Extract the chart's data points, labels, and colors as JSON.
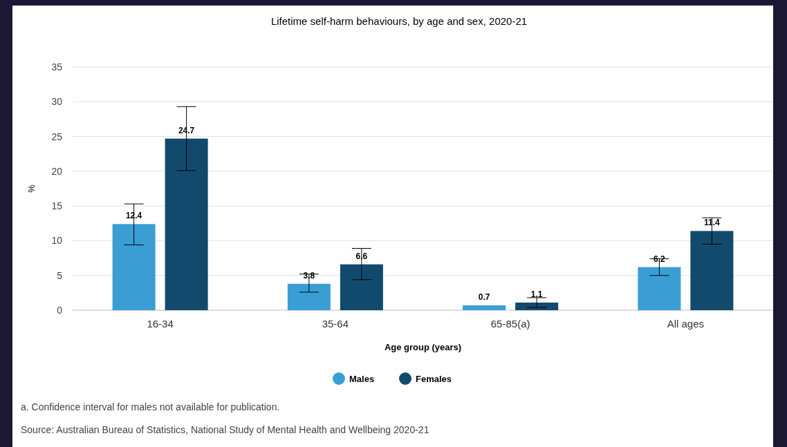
{
  "chart_data": {
    "type": "bar",
    "title": "Lifetime self-harm behaviours, by age and sex, 2020-21",
    "xlabel": "Age group (years)",
    "ylabel": "%",
    "categories": [
      "16-34",
      "35-64",
      "65-85(a)",
      "All ages"
    ],
    "series": [
      {
        "name": "Males",
        "color": "#3a9ed4",
        "values": [
          12.4,
          3.8,
          0.7,
          6.2
        ],
        "errors": [
          [
            9.4,
            15.3
          ],
          [
            2.6,
            5.2
          ],
          null,
          [
            5.0,
            7.4
          ]
        ]
      },
      {
        "name": "Females",
        "color": "#124a6e",
        "values": [
          24.7,
          6.6,
          1.1,
          11.4
        ],
        "errors": [
          [
            20.1,
            29.3
          ],
          [
            4.4,
            8.9
          ],
          [
            0.4,
            1.8
          ],
          [
            9.5,
            13.3
          ]
        ]
      }
    ],
    "ylim": [
      0,
      35
    ],
    "yticks": [
      0,
      5,
      10,
      15,
      20,
      25,
      30,
      35
    ],
    "grid": "y",
    "legend": "bottom",
    "data_labels": true,
    "annotations": [
      "a. Confidence interval for males not available for publication.",
      "Source: Australian Bureau of Statistics, National Study of Mental Health and Wellbeing 2020-21"
    ]
  }
}
